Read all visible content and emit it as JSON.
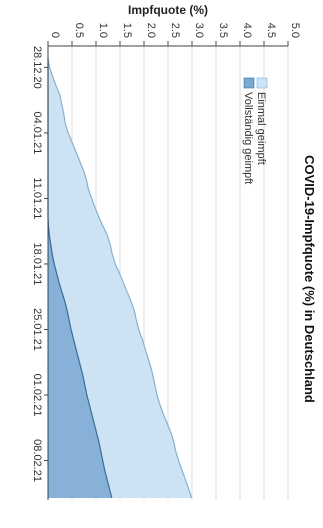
{
  "chart_data": {
    "type": "area",
    "title": "COVID-19-Impfquote (%) in Deutschland",
    "ylabel": "Impfquote (%)",
    "xlabel": "",
    "ylim": [
      0,
      5.0
    ],
    "y_ticks": [
      "0",
      "0.5",
      "1.0",
      "1.5",
      "2.0",
      "2.5",
      "3.0",
      "3.5",
      "4.0",
      "4.5",
      "5.0"
    ],
    "x_ticks": [
      "28.12.20",
      "04.01.21",
      "11.01.21",
      "18.01.21",
      "25.01.21",
      "01.02.21",
      "08.02.21"
    ],
    "grid": true,
    "legend_position": "top-right",
    "x": [
      "27.12.20",
      "28.12.20",
      "29.12.20",
      "30.12.20",
      "31.12.20",
      "01.01.21",
      "02.01.21",
      "03.01.21",
      "04.01.21",
      "05.01.21",
      "06.01.21",
      "07.01.21",
      "08.01.21",
      "09.01.21",
      "10.01.21",
      "11.01.21",
      "12.01.21",
      "13.01.21",
      "14.01.21",
      "15.01.21",
      "16.01.21",
      "17.01.21",
      "18.01.21",
      "19.01.21",
      "20.01.21",
      "21.01.21",
      "22.01.21",
      "23.01.21",
      "24.01.21",
      "25.01.21",
      "26.01.21",
      "27.01.21",
      "28.01.21",
      "29.01.21",
      "30.01.21",
      "31.01.21",
      "01.02.21",
      "02.02.21",
      "03.02.21",
      "04.02.21",
      "05.02.21",
      "06.02.21",
      "07.02.21",
      "08.02.21",
      "09.02.21",
      "10.02.21",
      "11.02.21",
      "12.02.21"
    ],
    "series": [
      {
        "name": "Einmal geimpft",
        "color": "#cde3f4",
        "line_color": "#7fb3da",
        "values": [
          0.0,
          0.03,
          0.1,
          0.17,
          0.25,
          0.29,
          0.33,
          0.36,
          0.42,
          0.5,
          0.58,
          0.66,
          0.74,
          0.8,
          0.84,
          0.91,
          0.98,
          1.06,
          1.15,
          1.24,
          1.3,
          1.34,
          1.4,
          1.49,
          1.57,
          1.65,
          1.73,
          1.8,
          1.84,
          1.89,
          1.96,
          2.02,
          2.08,
          2.14,
          2.19,
          2.23,
          2.27,
          2.33,
          2.4,
          2.48,
          2.56,
          2.62,
          2.66,
          2.72,
          2.79,
          2.86,
          2.93,
          2.99
        ]
      },
      {
        "name": "Vollständig geimpft",
        "color": "#7ba8d2",
        "line_color": "#2f6fa8",
        "values": [
          0,
          0,
          0,
          0,
          0,
          0,
          0,
          0,
          0,
          0,
          0,
          0,
          0,
          0,
          0,
          0,
          0,
          0,
          0.01,
          0.03,
          0.06,
          0.09,
          0.13,
          0.18,
          0.23,
          0.29,
          0.35,
          0.4,
          0.44,
          0.48,
          0.53,
          0.58,
          0.63,
          0.68,
          0.73,
          0.77,
          0.81,
          0.86,
          0.91,
          0.96,
          1.01,
          1.06,
          1.1,
          1.14,
          1.18,
          1.23,
          1.28,
          1.33
        ]
      }
    ]
  }
}
